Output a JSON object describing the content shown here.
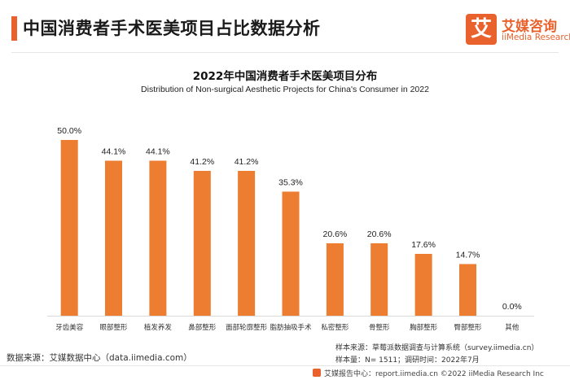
{
  "header": {
    "title": "中国消费者手术医美项目占比数据分析"
  },
  "logo": {
    "mark": "艾",
    "name_cn": "艾媒咨询",
    "name_en": "iiMedia Research"
  },
  "chart_data": {
    "type": "bar",
    "title": "2022年中国消费者手术医美项目分布",
    "subtitle": "Distribution of Non-surgical Aesthetic Projects for China's Consumer in 2022",
    "categories": [
      "牙齿美容",
      "眼部整形",
      "植发养发",
      "鼻部整形",
      "面部轮廓整形",
      "脂肪抽吸手术",
      "私密整形",
      "骨整形",
      "胸部整形",
      "臀部整形",
      "其他"
    ],
    "values": [
      50.0,
      44.1,
      44.1,
      41.2,
      41.2,
      35.3,
      20.6,
      20.6,
      17.6,
      14.7,
      0.0
    ],
    "value_labels": [
      "50.0%",
      "44.1%",
      "44.1%",
      "41.2%",
      "41.2%",
      "35.3%",
      "20.6%",
      "20.6%",
      "17.6%",
      "14.7%",
      "0.0%"
    ],
    "unit": "%",
    "ylim": [
      0,
      50
    ],
    "grid": false,
    "bar_color": "#ed7d31",
    "xlabel": "",
    "ylabel": ""
  },
  "footer": {
    "data_source": "数据来源：艾媒数据中心（data.iimedia.com）",
    "sample_source": "样本来源：草莓派数据调查与计算系统（survey.iimedia.cn）",
    "sample_info": "样本量：N= 1511；调研时间：2022年7月",
    "report_site": "艾媒报告中心：report.iimedia.cn   ©2022  iiMedia Research  Inc"
  }
}
